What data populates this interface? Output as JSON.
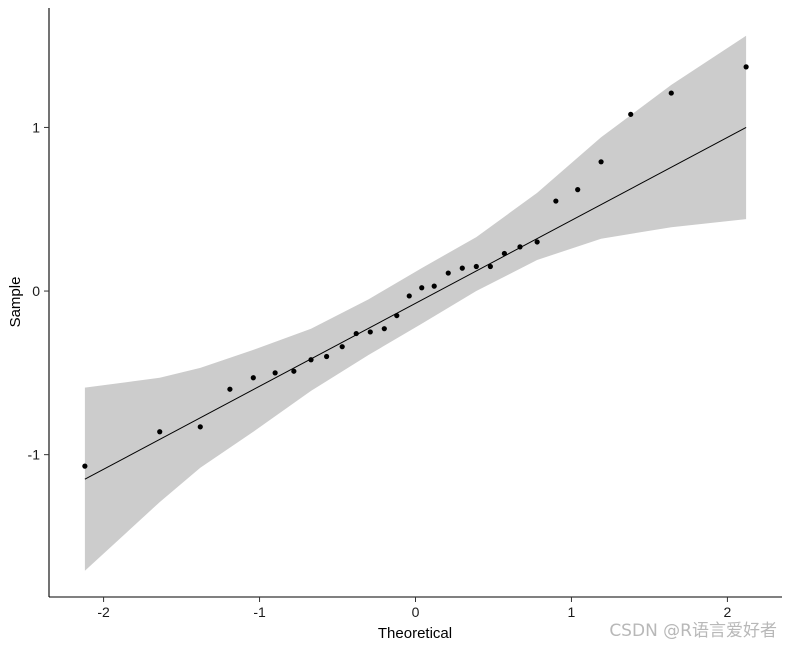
{
  "chart_data": {
    "type": "scatter",
    "xlabel": "Theoretical",
    "ylabel": "Sample",
    "xlim": [
      -2.35,
      2.35
    ],
    "ylim": [
      -1.87,
      1.73
    ],
    "x_ticks": [
      -2,
      -1,
      0,
      1,
      2
    ],
    "x_tick_labels": [
      "-2",
      "-1",
      "0",
      "1",
      "2"
    ],
    "y_ticks": [
      -1,
      0,
      1
    ],
    "y_tick_labels": [
      "-1",
      "0",
      "1"
    ],
    "grid": false,
    "points": [
      {
        "x": -2.12,
        "y": -1.07
      },
      {
        "x": -1.64,
        "y": -0.86
      },
      {
        "x": -1.38,
        "y": -0.83
      },
      {
        "x": -1.19,
        "y": -0.6
      },
      {
        "x": -1.04,
        "y": -0.53
      },
      {
        "x": -0.9,
        "y": -0.5
      },
      {
        "x": -0.78,
        "y": -0.49
      },
      {
        "x": -0.67,
        "y": -0.42
      },
      {
        "x": -0.57,
        "y": -0.4
      },
      {
        "x": -0.47,
        "y": -0.34
      },
      {
        "x": -0.38,
        "y": -0.26
      },
      {
        "x": -0.29,
        "y": -0.25
      },
      {
        "x": -0.2,
        "y": -0.23
      },
      {
        "x": -0.12,
        "y": -0.15
      },
      {
        "x": -0.04,
        "y": -0.03
      },
      {
        "x": 0.04,
        "y": 0.02
      },
      {
        "x": 0.12,
        "y": 0.03
      },
      {
        "x": 0.21,
        "y": 0.11
      },
      {
        "x": 0.3,
        "y": 0.14
      },
      {
        "x": 0.39,
        "y": 0.15
      },
      {
        "x": 0.48,
        "y": 0.15
      },
      {
        "x": 0.57,
        "y": 0.23
      },
      {
        "x": 0.67,
        "y": 0.27
      },
      {
        "x": 0.78,
        "y": 0.3
      },
      {
        "x": 0.9,
        "y": 0.55
      },
      {
        "x": 1.04,
        "y": 0.62
      },
      {
        "x": 1.19,
        "y": 0.79
      },
      {
        "x": 1.38,
        "y": 1.08
      },
      {
        "x": 1.64,
        "y": 1.21
      },
      {
        "x": 2.12,
        "y": 1.37
      }
    ],
    "reference_line": {
      "from": {
        "x": -2.12,
        "y": -1.15
      },
      "to": {
        "x": 2.12,
        "y": 1.0
      }
    },
    "confidence_band": {
      "x": [
        -2.12,
        -1.64,
        -1.38,
        -1.04,
        -0.67,
        -0.3,
        0.04,
        0.39,
        0.78,
        1.19,
        1.64,
        2.12
      ],
      "upper": [
        -0.59,
        -0.53,
        -0.47,
        -0.36,
        -0.23,
        -0.05,
        0.14,
        0.33,
        0.6,
        0.94,
        1.26,
        1.56
      ],
      "lower": [
        -1.71,
        -1.29,
        -1.08,
        -0.86,
        -0.61,
        -0.39,
        -0.2,
        0.0,
        0.19,
        0.32,
        0.39,
        0.44
      ]
    },
    "colors": {
      "points": "#000000",
      "line": "#000000",
      "band": "#cccccc",
      "axis": "#000000"
    }
  },
  "watermark": "CSDN @R语言爱好者"
}
